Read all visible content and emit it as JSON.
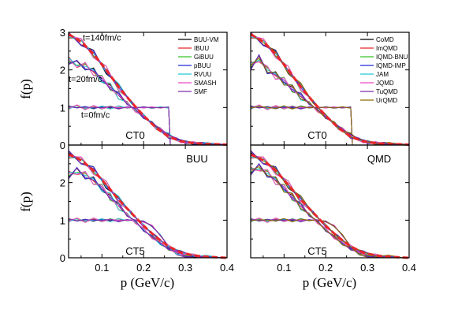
{
  "figure": {
    "xlabel": "p (GeV/c)",
    "ylabel": "f(p)"
  },
  "chart_data": [
    {
      "type": "line",
      "panel": "top-left",
      "label": "CT0",
      "xlim": [
        0.02,
        0.4
      ],
      "ylim": [
        0,
        3
      ],
      "x_ticks": [
        0.1,
        0.2,
        0.3,
        0.4
      ],
      "y_ticks": [
        0,
        1,
        2,
        3
      ],
      "annotations": [
        "t=140fm/c",
        "t=20fm/c",
        "t=0fm/c"
      ],
      "legend": {
        "position": "top-right",
        "entries": [
          {
            "name": "BUU-VM",
            "color": "#000000"
          },
          {
            "name": "IBUU",
            "color": "#e8262a"
          },
          {
            "name": "GiBUU",
            "color": "#34c224"
          },
          {
            "name": "pBUU",
            "color": "#1c2ad6"
          },
          {
            "name": "RVUU",
            "color": "#21c8d6"
          },
          {
            "name": "SMASH",
            "color": "#ee49c8"
          },
          {
            "name": "SMF",
            "color": "#7d2aa6"
          }
        ]
      },
      "reference": {
        "x": [
          0.02,
          0.05,
          0.08,
          0.11,
          0.14,
          0.17,
          0.2,
          0.23,
          0.26,
          0.29,
          0.32,
          0.35,
          0.38,
          0.4
        ],
        "y": [
          2.95,
          2.75,
          2.42,
          2.0,
          1.55,
          1.15,
          0.78,
          0.46,
          0.22,
          0.1,
          0.05,
          0.03,
          0.02,
          0.01
        ]
      },
      "series": [
        {
          "name": "t=0fm/c",
          "x": [
            0.02,
            0.04,
            0.06,
            0.08,
            0.1,
            0.12,
            0.14,
            0.16,
            0.18,
            0.2,
            0.22,
            0.24,
            0.26,
            0.264,
            0.27,
            0.3,
            0.4
          ],
          "y": [
            1.0,
            1.03,
            0.98,
            1.01,
            1.0,
            1.0,
            1.0,
            1.0,
            1.0,
            1.0,
            1.0,
            1.0,
            1.0,
            0.0,
            0.0,
            0.0,
            0.0
          ]
        },
        {
          "name": "t=20fm/c",
          "x": [
            0.02,
            0.04,
            0.06,
            0.08,
            0.1,
            0.12,
            0.14,
            0.16,
            0.18,
            0.2,
            0.22,
            0.24,
            0.26,
            0.28,
            0.3,
            0.34,
            0.4
          ],
          "y": [
            2.25,
            2.15,
            2.1,
            1.95,
            1.75,
            1.55,
            1.32,
            1.12,
            0.92,
            0.75,
            0.58,
            0.42,
            0.28,
            0.15,
            0.08,
            0.03,
            0.01
          ]
        },
        {
          "name": "t=140fm/c",
          "x": [
            0.02,
            0.05,
            0.08,
            0.11,
            0.14,
            0.17,
            0.2,
            0.23,
            0.26,
            0.29,
            0.32,
            0.35,
            0.38,
            0.4
          ],
          "y": [
            2.95,
            2.75,
            2.42,
            2.0,
            1.55,
            1.15,
            0.78,
            0.46,
            0.22,
            0.1,
            0.05,
            0.03,
            0.02,
            0.01
          ]
        }
      ]
    },
    {
      "type": "line",
      "panel": "top-right",
      "label": "CT0",
      "xlim": [
        0.02,
        0.4
      ],
      "ylim": [
        0,
        3
      ],
      "x_ticks": [
        0.1,
        0.2,
        0.3,
        0.4
      ],
      "y_ticks": [
        0,
        1,
        2,
        3
      ],
      "legend": {
        "position": "top-right",
        "entries": [
          {
            "name": "CoMD",
            "color": "#000000"
          },
          {
            "name": "ImQMD",
            "color": "#e8262a"
          },
          {
            "name": "IQMD-BNU",
            "color": "#34c224"
          },
          {
            "name": "IQMD-IMP",
            "color": "#1c2ad6"
          },
          {
            "name": "JAM",
            "color": "#21c8d6"
          },
          {
            "name": "JQMD",
            "color": "#ee49c8"
          },
          {
            "name": "TuQMD",
            "color": "#7d2aa6"
          },
          {
            "name": "UrQMD",
            "color": "#8a6a00"
          }
        ]
      },
      "reference": {
        "x": [
          0.02,
          0.05,
          0.08,
          0.11,
          0.14,
          0.17,
          0.2,
          0.23,
          0.26,
          0.29,
          0.32,
          0.35,
          0.38,
          0.4
        ],
        "y": [
          2.95,
          2.75,
          2.42,
          2.0,
          1.55,
          1.15,
          0.78,
          0.46,
          0.22,
          0.1,
          0.05,
          0.03,
          0.02,
          0.01
        ]
      },
      "series": [
        {
          "name": "t=0fm/c",
          "x": [
            0.02,
            0.04,
            0.06,
            0.08,
            0.1,
            0.12,
            0.14,
            0.16,
            0.18,
            0.2,
            0.22,
            0.24,
            0.26,
            0.264,
            0.27,
            0.3,
            0.4
          ],
          "y": [
            1.0,
            1.03,
            0.98,
            1.01,
            1.0,
            1.0,
            1.0,
            1.0,
            1.0,
            1.0,
            1.0,
            1.0,
            1.0,
            0.0,
            0.0,
            0.0,
            0.0
          ]
        },
        {
          "name": "t=20fm/c",
          "x": [
            0.02,
            0.04,
            0.06,
            0.08,
            0.1,
            0.12,
            0.14,
            0.16,
            0.18,
            0.2,
            0.22,
            0.24,
            0.26,
            0.28,
            0.3,
            0.34,
            0.4
          ],
          "y": [
            2.1,
            2.3,
            2.0,
            1.85,
            1.7,
            1.5,
            1.3,
            1.12,
            0.92,
            0.75,
            0.58,
            0.42,
            0.28,
            0.15,
            0.08,
            0.03,
            0.01
          ]
        },
        {
          "name": "t=140fm/c",
          "x": [
            0.02,
            0.05,
            0.08,
            0.11,
            0.14,
            0.17,
            0.2,
            0.23,
            0.26,
            0.29,
            0.32,
            0.35,
            0.38,
            0.4
          ],
          "y": [
            2.95,
            2.75,
            2.42,
            2.0,
            1.55,
            1.15,
            0.78,
            0.46,
            0.22,
            0.1,
            0.05,
            0.03,
            0.02,
            0.01
          ]
        }
      ]
    },
    {
      "type": "line",
      "panel": "bottom-left",
      "label": "CT5",
      "tag": "BUU",
      "xlim": [
        0.02,
        0.4
      ],
      "ylim": [
        0,
        3
      ],
      "x_ticks": [
        0.1,
        0.2,
        0.3,
        0.4
      ],
      "y_ticks": [
        0,
        1,
        2
      ],
      "reference": {
        "x": [
          0.02,
          0.05,
          0.08,
          0.11,
          0.14,
          0.17,
          0.2,
          0.23,
          0.26,
          0.29,
          0.32,
          0.35,
          0.38,
          0.4
        ],
        "y": [
          2.75,
          2.6,
          2.32,
          1.95,
          1.55,
          1.2,
          0.85,
          0.55,
          0.3,
          0.14,
          0.06,
          0.03,
          0.01,
          0.0
        ]
      },
      "series": [
        {
          "name": "t=0fm/c",
          "x": [
            0.02,
            0.04,
            0.06,
            0.08,
            0.1,
            0.12,
            0.14,
            0.16,
            0.18,
            0.2,
            0.22,
            0.24,
            0.26,
            0.28,
            0.3,
            0.34,
            0.4
          ],
          "y": [
            1.0,
            1.02,
            0.98,
            1.02,
            1.0,
            1.0,
            1.0,
            1.0,
            1.0,
            0.96,
            0.85,
            0.6,
            0.3,
            0.08,
            0.02,
            0.0,
            0.0
          ]
        },
        {
          "name": "t=20fm/c",
          "x": [
            0.02,
            0.04,
            0.06,
            0.08,
            0.1,
            0.12,
            0.14,
            0.16,
            0.18,
            0.2,
            0.22,
            0.24,
            0.26,
            0.28,
            0.3,
            0.34,
            0.4
          ],
          "y": [
            2.2,
            2.3,
            2.2,
            2.05,
            1.85,
            1.62,
            1.38,
            1.15,
            0.95,
            0.75,
            0.55,
            0.38,
            0.24,
            0.13,
            0.07,
            0.02,
            0.0
          ]
        },
        {
          "name": "t=140fm/c",
          "x": [
            0.02,
            0.05,
            0.08,
            0.11,
            0.14,
            0.17,
            0.2,
            0.23,
            0.26,
            0.29,
            0.32,
            0.35,
            0.38,
            0.4
          ],
          "y": [
            2.75,
            2.6,
            2.32,
            1.95,
            1.55,
            1.2,
            0.85,
            0.55,
            0.3,
            0.14,
            0.06,
            0.03,
            0.01,
            0.0
          ]
        }
      ]
    },
    {
      "type": "line",
      "panel": "bottom-right",
      "label": "CT5",
      "tag": "QMD",
      "xlim": [
        0.02,
        0.4
      ],
      "ylim": [
        0,
        3
      ],
      "x_ticks": [
        0.1,
        0.2,
        0.3,
        0.4
      ],
      "y_ticks": [
        0,
        1,
        2
      ],
      "reference": {
        "x": [
          0.02,
          0.05,
          0.08,
          0.11,
          0.14,
          0.17,
          0.2,
          0.23,
          0.26,
          0.29,
          0.32,
          0.35,
          0.38,
          0.4
        ],
        "y": [
          2.75,
          2.6,
          2.32,
          1.95,
          1.55,
          1.2,
          0.85,
          0.55,
          0.3,
          0.14,
          0.06,
          0.03,
          0.01,
          0.0
        ]
      },
      "series": [
        {
          "name": "t=0fm/c",
          "x": [
            0.02,
            0.04,
            0.06,
            0.08,
            0.1,
            0.12,
            0.14,
            0.16,
            0.18,
            0.2,
            0.22,
            0.24,
            0.26,
            0.28,
            0.3,
            0.34,
            0.4
          ],
          "y": [
            1.0,
            1.02,
            0.98,
            1.02,
            1.0,
            1.0,
            1.0,
            1.0,
            1.0,
            0.96,
            0.85,
            0.6,
            0.3,
            0.08,
            0.02,
            0.0,
            0.0
          ]
        },
        {
          "name": "t=20fm/c",
          "x": [
            0.02,
            0.04,
            0.06,
            0.08,
            0.1,
            0.12,
            0.14,
            0.16,
            0.18,
            0.2,
            0.22,
            0.24,
            0.26,
            0.28,
            0.3,
            0.34,
            0.4
          ],
          "y": [
            2.3,
            2.4,
            2.25,
            2.05,
            1.85,
            1.62,
            1.38,
            1.15,
            0.95,
            0.75,
            0.55,
            0.38,
            0.24,
            0.13,
            0.07,
            0.02,
            0.0
          ]
        },
        {
          "name": "t=140fm/c",
          "x": [
            0.02,
            0.05,
            0.08,
            0.11,
            0.14,
            0.17,
            0.2,
            0.23,
            0.26,
            0.29,
            0.32,
            0.35,
            0.38,
            0.4
          ],
          "y": [
            2.75,
            2.6,
            2.32,
            1.95,
            1.55,
            1.2,
            0.85,
            0.55,
            0.3,
            0.14,
            0.06,
            0.03,
            0.01,
            0.0
          ]
        }
      ]
    }
  ]
}
